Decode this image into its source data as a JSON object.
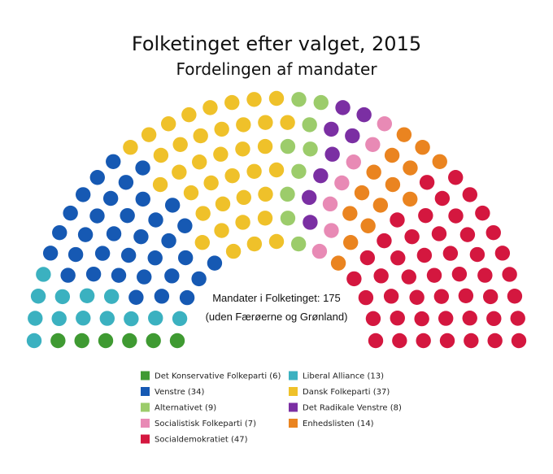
{
  "chart_data": {
    "type": "parliament",
    "title": "Folketinget efter valget, 2015",
    "subtitle": "Fordelingen af mandater",
    "total_seats": 175,
    "note_total": "Mandater i Folketinget: 175",
    "note_sub": "(uden Færøerne og Grønland)",
    "seat_order": [
      "Det Konservative Folkeparti",
      "Liberal Alliance",
      "Venstre",
      "Dansk Folkeparti",
      "Alternativet",
      "Det Radikale Venstre",
      "Socialistisk Folkeparti",
      "Enhedslisten",
      "Socialdemokratiet"
    ],
    "parties": [
      {
        "name": "Det Konservative Folkeparti",
        "seats": 6,
        "color": "#3f9a32",
        "legend": "Det Konservative Folkeparti (6)"
      },
      {
        "name": "Liberal Alliance",
        "seats": 13,
        "color": "#3bb1c0",
        "legend": "Liberal Alliance (13)"
      },
      {
        "name": "Venstre",
        "seats": 34,
        "color": "#1659b3",
        "legend": "Venstre (34)"
      },
      {
        "name": "Dansk Folkeparti",
        "seats": 37,
        "color": "#efc12a",
        "legend": "Dansk Folkeparti (37)"
      },
      {
        "name": "Alternativet",
        "seats": 9,
        "color": "#9ccc6b",
        "legend": "Alternativet (9)"
      },
      {
        "name": "Det Radikale Venstre",
        "seats": 8,
        "color": "#7b2fa3",
        "legend": "Det Radikale Venstre (8)"
      },
      {
        "name": "Socialistisk Folkeparti",
        "seats": 7,
        "color": "#e88ab5",
        "legend": "Socialistisk Folkeparti (7)"
      },
      {
        "name": "Enhedslisten",
        "seats": 14,
        "color": "#ea8420",
        "legend": "Enhedslisten (14)"
      },
      {
        "name": "Socialdemokratiet",
        "seats": 47,
        "color": "#d4173f",
        "legend": "Socialdemokratiet (47)"
      }
    ],
    "legend_order": [
      "Det Konservative Folkeparti",
      "Liberal Alliance",
      "Venstre",
      "Dansk Folkeparti",
      "Alternativet",
      "Det Radikale Venstre",
      "Socialistisk Folkeparti",
      "Enhedslisten",
      "Socialdemokratiet"
    ]
  }
}
